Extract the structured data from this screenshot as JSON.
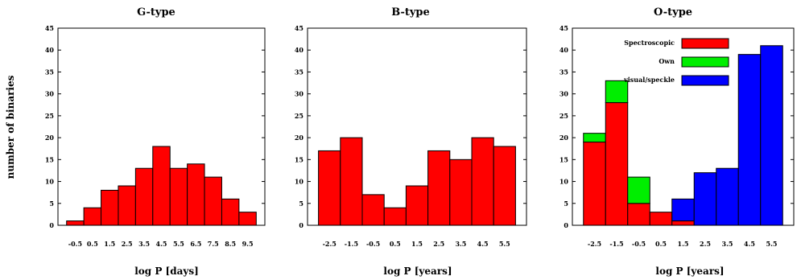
{
  "figure": {
    "ylabel": "number of binaries"
  },
  "chart_data": [
    {
      "type": "bar",
      "title": "G-type",
      "xlabel": "log P [days]",
      "ylabel": "number of binaries",
      "categories": [
        "-0.5",
        "0.5",
        "1.5",
        "2.5",
        "3.5",
        "4.5",
        "5.5",
        "6.5",
        "7.5",
        "8.5",
        "9.5"
      ],
      "values": [
        1,
        4,
        8,
        9,
        13,
        18,
        13,
        14,
        11,
        6,
        3
      ],
      "xlim": [
        -1.5,
        10.5
      ],
      "ylim": [
        0,
        45
      ],
      "yticks": [
        0,
        5,
        10,
        15,
        20,
        25,
        30,
        35,
        40,
        45
      ],
      "color": "#ff0000"
    },
    {
      "type": "bar",
      "title": "B-type",
      "xlabel": "log P [years]",
      "categories": [
        "-2.5",
        "-1.5",
        "-0.5",
        "0.5",
        "1.5",
        "2.5",
        "3.5",
        "4.5",
        "5.5"
      ],
      "values": [
        17,
        20,
        7,
        4,
        9,
        17,
        15,
        20,
        18
      ],
      "xlim": [
        -3.5,
        6.5
      ],
      "ylim": [
        0,
        45
      ],
      "yticks": [
        0,
        5,
        10,
        15,
        20,
        25,
        30,
        35,
        40,
        45
      ],
      "color": "#ff0000"
    },
    {
      "type": "bar",
      "stacked": true,
      "title": "O-type",
      "xlabel": "log P [years]",
      "categories": [
        "-2.5",
        "-1.5",
        "-0.5",
        "0.5",
        "1.5",
        "2.5",
        "3.5",
        "4.5",
        "5.5"
      ],
      "series": [
        {
          "name": "Spectroscopic",
          "color": "#ff0000",
          "values": [
            19,
            28,
            5,
            3,
            1,
            0,
            0,
            0,
            0
          ]
        },
        {
          "name": "Own",
          "color": "#00ee00",
          "values": [
            2,
            5,
            6,
            0,
            0,
            0,
            0,
            0,
            0
          ]
        },
        {
          "name": "visual/speckle",
          "color": "#0000ff",
          "values": [
            0,
            0,
            0,
            0,
            5,
            12,
            13,
            39,
            41
          ]
        }
      ],
      "xlim": [
        -3.5,
        6.5
      ],
      "ylim": [
        0,
        45
      ],
      "yticks": [
        0,
        5,
        10,
        15,
        20,
        25,
        30,
        35,
        40,
        45
      ],
      "legend": "top-right"
    }
  ]
}
